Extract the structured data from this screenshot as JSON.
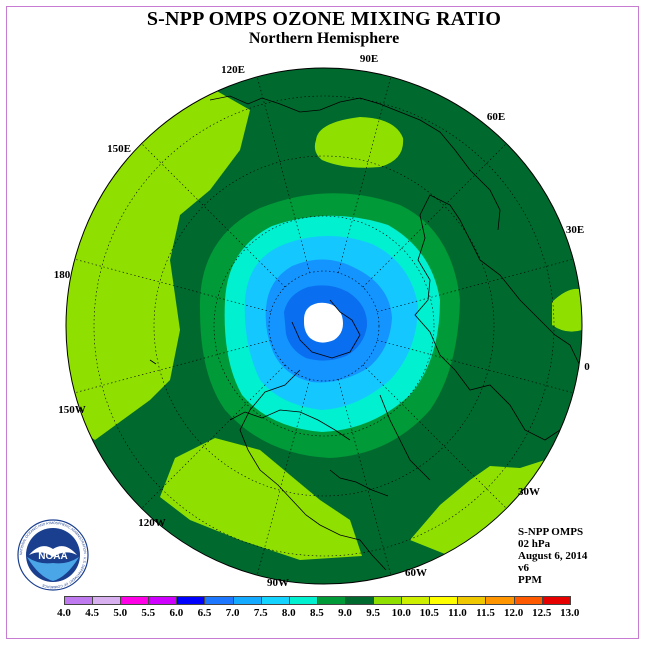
{
  "header": {
    "title": "S-NPP OMPS OZONE MIXING RATIO",
    "subtitle": "Northern Hemisphere"
  },
  "map": {
    "projection": "north-polar-stereographic",
    "longitude_labels": [
      "90E",
      "60E",
      "30E",
      "0",
      "30W",
      "60W",
      "90W",
      "120W",
      "150W",
      "180",
      "150E",
      "120E"
    ],
    "colors": {
      "lt_green": "#8fe000",
      "mid_green": "#009a38",
      "dk_green": "#006a2e",
      "teal": "#00f0d0",
      "lt_blue": "#14c8ff",
      "mid_blue": "#1494ff",
      "dk_blue": "#0a6ef0",
      "polar_night": "#ffffff"
    }
  },
  "info": {
    "instrument": "S-NPP OMPS",
    "level": "02 hPa",
    "date": "August 6, 2014",
    "version": "v6",
    "units": "PPM"
  },
  "colorbar": {
    "ticks": [
      "4.0",
      "4.5",
      "5.0",
      "5.5",
      "6.0",
      "6.5",
      "7.0",
      "7.5",
      "8.0",
      "8.5",
      "9.0",
      "9.5",
      "10.0",
      "10.5",
      "11.0",
      "11.5",
      "12.0",
      "12.5",
      "13.0"
    ],
    "colors": [
      "#c07af0",
      "#d8b0f0",
      "#ff00e6",
      "#d000ff",
      "#0000ff",
      "#1e78ff",
      "#14aaff",
      "#14d4ff",
      "#00f0d0",
      "#009a38",
      "#006a2e",
      "#8fe000",
      "#ccf000",
      "#ffff00",
      "#f0c800",
      "#ff9600",
      "#ff5a00",
      "#e60000",
      "#8c5a3c"
    ]
  },
  "logo": {
    "text": "NOAA",
    "ring_text": "NATIONAL OCEANIC AND ATMOSPHERIC ADMINISTRATION · U.S. DEPARTMENT OF COMMERCE"
  }
}
